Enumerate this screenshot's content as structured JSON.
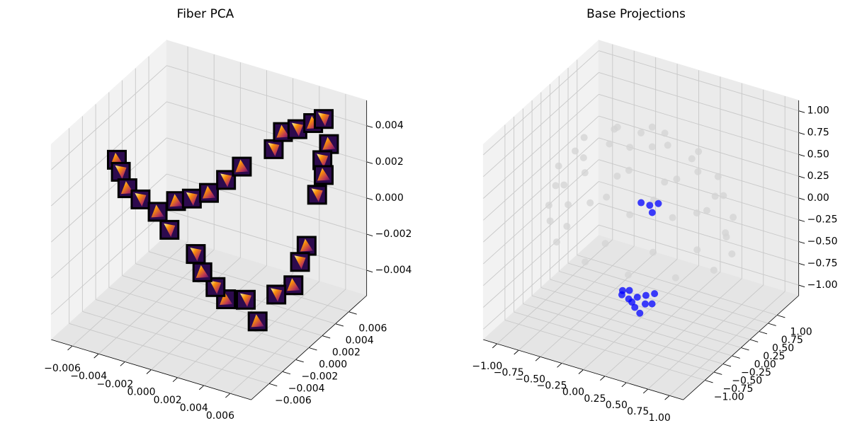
{
  "chart_data": [
    {
      "type": "scatter3d",
      "title": "Fiber PCA",
      "marker": "image",
      "color": "#aecde6",
      "x": [
        -0.007,
        -0.0067,
        -0.0062,
        -0.0052,
        -0.0039,
        -0.003,
        -0.0025,
        -0.0013,
        0.0,
        0.0013,
        0.0025,
        0.0023,
        0.003,
        0.0041,
        0.0053,
        0.0061,
        0.0065,
        0.006,
        0.0061,
        0.0056,
        0.0048,
        0.0043,
        0.0038,
        0.0025,
        0.0037,
        0.0028,
        0.0013,
        0.0005,
        -0.0005,
        -0.001
      ],
      "y": [
        0,
        0,
        0,
        0,
        0,
        0,
        0,
        0,
        0,
        0,
        0,
        0.0052,
        0.0052,
        0.0052,
        0.0052,
        0.0052,
        0.0052,
        0.0052,
        0.0052,
        0.0052,
        0.0052,
        0.0052,
        0.0052,
        0.0052,
        0,
        0,
        0,
        0,
        0,
        0
      ],
      "z": [
        0.0018,
        0.0012,
        0.0004,
        0.0,
        -0.0004,
        -0.0012,
        0.0005,
        0.0009,
        0.0015,
        0.0025,
        0.0035,
        0.0027,
        0.0038,
        0.0042,
        0.0048,
        0.0052,
        0.0039,
        0.0029,
        0.0021,
        0.0009,
        -0.0021,
        -0.0031,
        -0.0045,
        -0.0053,
        -0.0048,
        -0.0038,
        -0.0041,
        -0.0036,
        -0.003,
        -0.0021
      ],
      "xlim": [
        -0.0076,
        0.0076
      ],
      "ylim": [
        -0.0087,
        0.0087
      ],
      "zlim": [
        -0.0054,
        0.0054
      ],
      "xticks": [
        {
          "value": -0.006,
          "label": "−0.006"
        },
        {
          "value": -0.004,
          "label": "−0.004"
        },
        {
          "value": -0.002,
          "label": "−0.002"
        },
        {
          "value": 0,
          "label": "0.000"
        },
        {
          "value": 0.002,
          "label": "0.002"
        },
        {
          "value": 0.004,
          "label": "0.004"
        },
        {
          "value": 0.006,
          "label": "0.006"
        }
      ],
      "yticks": [
        {
          "value": -0.006,
          "label": "−0.006"
        },
        {
          "value": -0.004,
          "label": "−0.004"
        },
        {
          "value": -0.002,
          "label": "−0.002"
        },
        {
          "value": 0,
          "label": "0.000"
        },
        {
          "value": 0.002,
          "label": "0.002"
        },
        {
          "value": 0.004,
          "label": "0.004"
        },
        {
          "value": 0.006,
          "label": "0.006"
        }
      ],
      "zticks": [
        {
          "value": -0.004,
          "label": "−0.004"
        },
        {
          "value": -0.002,
          "label": "−0.002"
        },
        {
          "value": 0,
          "label": "0.000"
        },
        {
          "value": 0.002,
          "label": "0.002"
        },
        {
          "value": 0.004,
          "label": "0.004"
        }
      ],
      "grid": true
    },
    {
      "type": "scatter3d",
      "title": "Base Projections",
      "series": [
        {
          "color": "#d3d3d3",
          "x": [
            0.99,
            0.86,
            0.5,
            0,
            -0.5,
            -0.86,
            -0.99,
            -0.86,
            -0.5,
            0,
            0.5,
            0.86,
            0.86,
            0.63,
            0.23,
            -0.23,
            -0.63,
            -0.86,
            -0.86,
            -0.63,
            -0.23,
            0.23,
            0.63,
            0.86,
            0.66,
            0.47,
            0,
            -0.47,
            -0.66,
            -0.47,
            0,
            0.47,
            0.31,
            0,
            -0.31,
            0,
            0,
            0.95,
            0.69,
            0.25,
            -0.25,
            -0.69,
            -0.95,
            -0.95,
            -0.69,
            -0.25,
            0.25,
            0.69,
            0.95
          ],
          "y": [
            0,
            0.5,
            0.86,
            0.99,
            0.86,
            0.5,
            0,
            -0.5,
            -0.86,
            -0.99,
            -0.86,
            -0.5,
            0.23,
            0.63,
            0.86,
            0.86,
            0.63,
            0.23,
            -0.23,
            -0.63,
            -0.86,
            -0.86,
            -0.63,
            -0.23,
            0,
            0.47,
            0.66,
            0.47,
            0,
            -0.47,
            -0.66,
            -0.47,
            0,
            0.31,
            0,
            -0.31,
            0,
            0.25,
            0.69,
            0.95,
            0.95,
            0.69,
            0.25,
            -0.25,
            -0.69,
            -0.95,
            -0.95,
            -0.69,
            -0.25
          ],
          "z": [
            0.1,
            0.1,
            0.1,
            0.1,
            0.1,
            0.1,
            0.1,
            0.1,
            0.1,
            0.1,
            0.1,
            0.1,
            0.45,
            0.45,
            0.45,
            0.45,
            0.45,
            0.45,
            0.45,
            0.45,
            0.45,
            0.45,
            0.45,
            0.45,
            0.75,
            0.75,
            0.75,
            0.75,
            0.75,
            0.75,
            0.75,
            0.75,
            0.95,
            0.95,
            0.95,
            0.95,
            1,
            -0.2,
            -0.2,
            -0.2,
            -0.2,
            -0.2,
            -0.2,
            -0.2,
            -0.2,
            -0.2,
            -0.2,
            -0.2,
            -0.2
          ]
        },
        {
          "color": "#0000ff",
          "x": [
            0.25,
            0.35,
            0.15,
            0.3,
            0.2,
            0.4,
            0.1,
            0.3,
            0.2,
            0.45,
            0.05,
            0.25,
            -0.15,
            -0.05,
            -0.25,
            -0.1
          ],
          "y": [
            -0.7,
            -0.7,
            -0.7,
            -0.6,
            -0.8,
            -0.65,
            -0.75,
            -0.75,
            -0.65,
            -0.7,
            -0.65,
            -0.85,
            0.6,
            0.6,
            0.6,
            0.55
          ],
          "z": [
            -0.55,
            -0.5,
            -0.6,
            -0.65,
            -0.45,
            -0.6,
            -0.5,
            -0.7,
            -0.7,
            -0.45,
            -0.6,
            -0.55,
            -0.1,
            -0.05,
            -0.1,
            -0.15
          ]
        }
      ],
      "xlim": [
        -1.16,
        1.16
      ],
      "ylim": [
        -1.6,
        1.6
      ],
      "zlim": [
        -1.12,
        1.12
      ],
      "xticks": [
        {
          "value": -1,
          "label": "−1.00"
        },
        {
          "value": -0.75,
          "label": "−0.75"
        },
        {
          "value": -0.5,
          "label": "−0.50"
        },
        {
          "value": -0.25,
          "label": "−0.25"
        },
        {
          "value": 0,
          "label": "0.00"
        },
        {
          "value": 0.25,
          "label": "0.25"
        },
        {
          "value": 0.5,
          "label": "0.50"
        },
        {
          "value": 0.75,
          "label": "0.75"
        },
        {
          "value": 1,
          "label": "1.00"
        }
      ],
      "yticks": [
        {
          "value": -1,
          "label": "−1.00"
        },
        {
          "value": -0.75,
          "label": "−0.75"
        },
        {
          "value": -0.5,
          "label": "−0.50"
        },
        {
          "value": -0.25,
          "label": "−0.25"
        },
        {
          "value": 0,
          "label": "0.00"
        },
        {
          "value": 0.25,
          "label": "0.25"
        },
        {
          "value": 0.5,
          "label": "0.50"
        },
        {
          "value": 0.75,
          "label": "0.75"
        },
        {
          "value": 1,
          "label": "1.00"
        }
      ],
      "zticks": [
        {
          "value": -1,
          "label": "−1.00"
        },
        {
          "value": -0.75,
          "label": "−0.75"
        },
        {
          "value": -0.5,
          "label": "−0.50"
        },
        {
          "value": -0.25,
          "label": "−0.25"
        },
        {
          "value": 0,
          "label": "0.00"
        },
        {
          "value": 0.25,
          "label": "0.25"
        },
        {
          "value": 0.5,
          "label": "0.50"
        },
        {
          "value": 0.75,
          "label": "0.75"
        },
        {
          "value": 1,
          "label": "1.00"
        }
      ],
      "grid": true
    }
  ]
}
